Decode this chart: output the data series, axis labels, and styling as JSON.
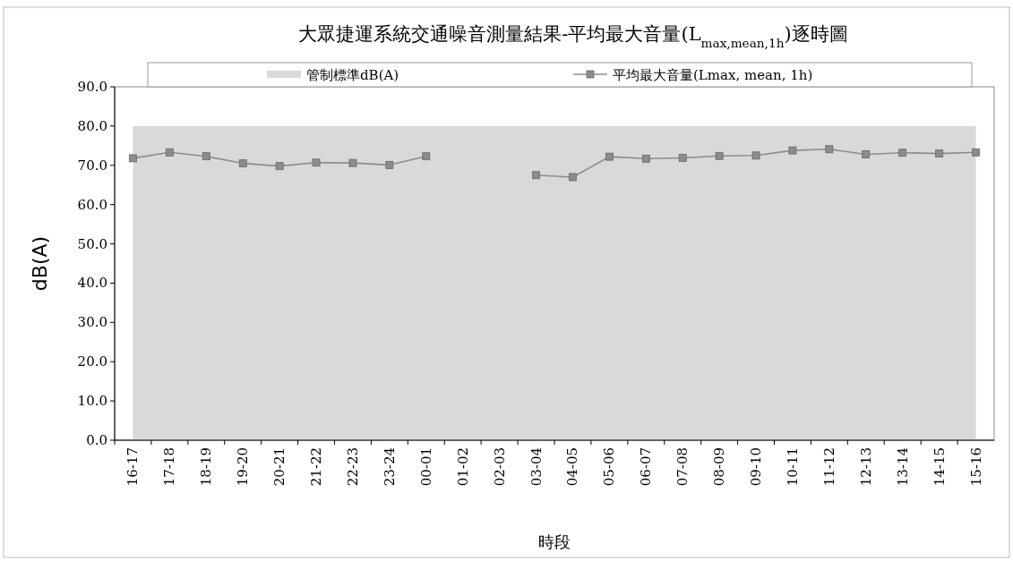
{
  "chart_data": {
    "type": "line",
    "title": "大眾捷運系統交通噪音測量結果-平均最大音量(L$_{max,mean,1h}$)逐時圖",
    "xlabel": "時段",
    "ylabel": "dB(A)",
    "categories": [
      "16-17",
      "17-18",
      "18-19",
      "19-20",
      "20-21",
      "21-22",
      "22-23",
      "23-24",
      "00-01",
      "01-02",
      "02-03",
      "03-04",
      "04-05",
      "05-06",
      "06-07",
      "07-08",
      "08-09",
      "09-10",
      "10-11",
      "11-12",
      "12-13",
      "13-14",
      "14-15",
      "15-16"
    ],
    "series": [
      {
        "name": "管制標準dB(A)",
        "type": "area",
        "color": "#d9d9d9",
        "values": [
          80,
          80,
          80,
          80,
          80,
          80,
          80,
          80,
          80,
          80,
          80,
          80,
          80,
          80,
          80,
          80,
          80,
          80,
          80,
          80,
          80,
          80,
          80,
          80
        ]
      },
      {
        "name": "平均最大音量(Lmax, mean, 1h)",
        "marker": "square",
        "color": "#8c8c8c",
        "values": [
          71.8,
          73.3,
          72.3,
          70.5,
          69.8,
          70.7,
          70.6,
          70.1,
          72.3,
          null,
          null,
          67.5,
          67.0,
          72.2,
          71.7,
          71.9,
          72.4,
          72.5,
          73.8,
          74.1,
          72.8,
          73.2,
          73.0,
          73.3
        ]
      }
    ],
    "ylim": [
      0,
      90
    ],
    "yticks": [
      {
        "value": 0,
        "label": "0.0"
      },
      {
        "value": 10,
        "label": "10.0"
      },
      {
        "value": 20,
        "label": "20.0"
      },
      {
        "value": 30,
        "label": "30.0"
      },
      {
        "value": 40,
        "label": "40.0"
      },
      {
        "value": 50,
        "label": "50.0"
      },
      {
        "value": 60,
        "label": "60.0"
      },
      {
        "value": 70,
        "label": "70.0"
      },
      {
        "value": 80,
        "label": "80.0"
      },
      {
        "value": 90,
        "label": "90.0"
      }
    ],
    "legend": "top",
    "grid": false
  }
}
